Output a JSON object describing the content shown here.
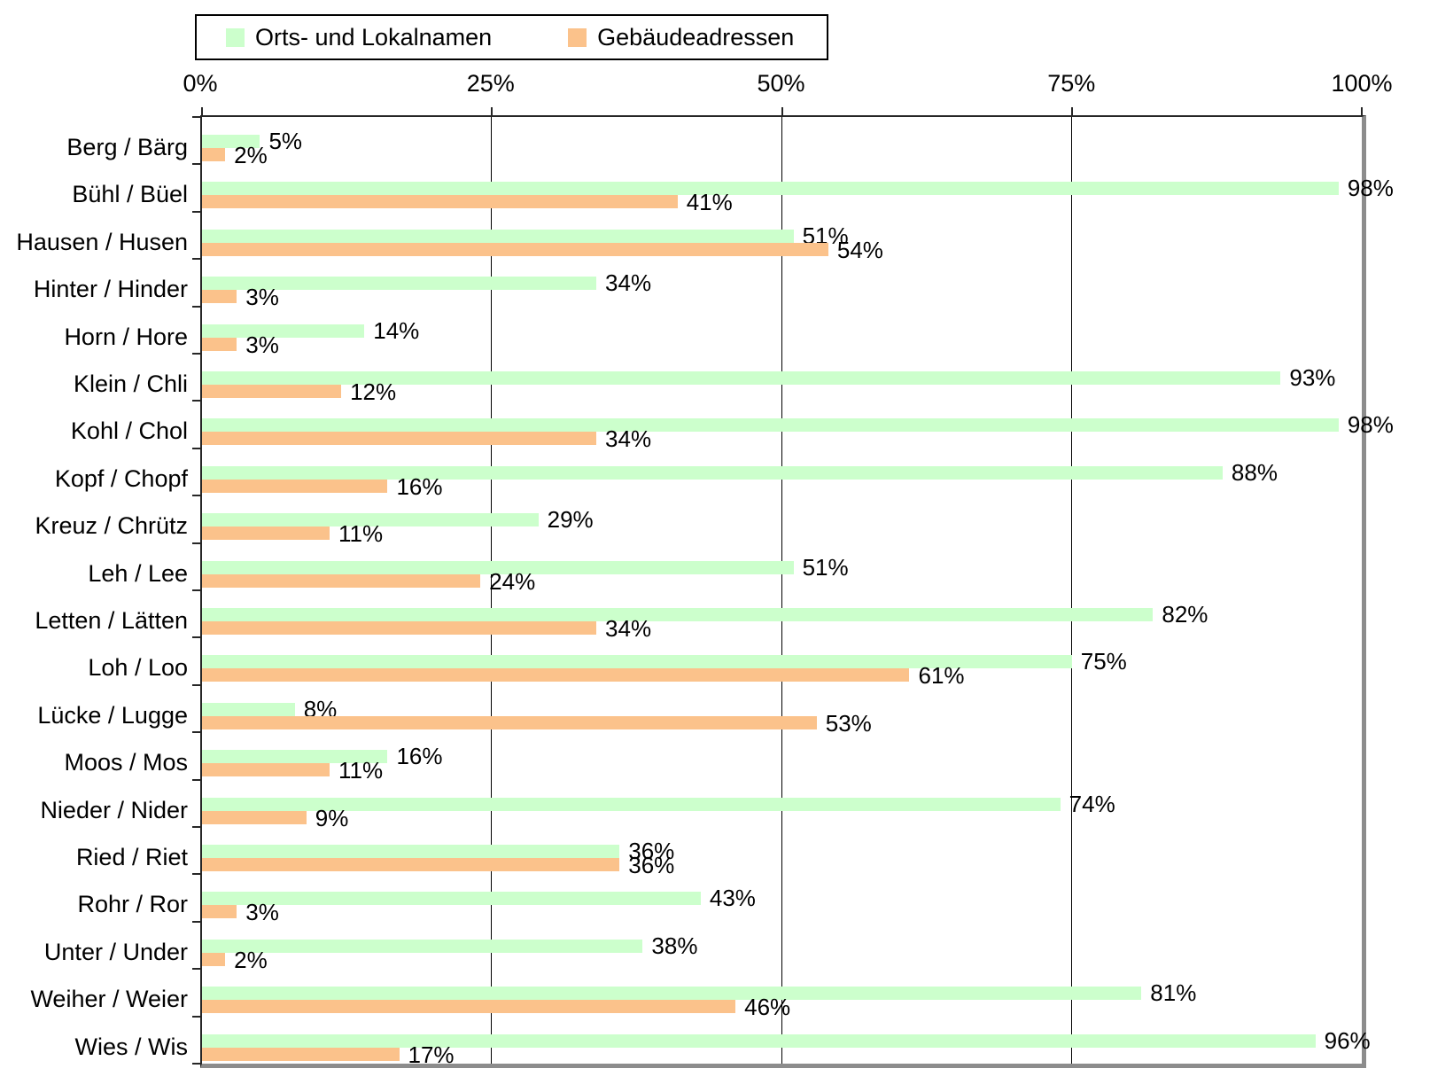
{
  "colors": {
    "bar_green": "#ccffcc",
    "bar_orange": "#fbc28b",
    "grid": "#000000",
    "axis": "#262626",
    "wall_shadow": "#8c8c8c",
    "background": "#ffffff"
  },
  "legend": {
    "items": [
      {
        "label": "Orts- und Lokalnamen",
        "color": "#ccffcc"
      },
      {
        "label": "Gebäudeadressen",
        "color": "#fbc28b"
      }
    ]
  },
  "chart_data": {
    "type": "bar",
    "orientation": "horizontal",
    "title": "",
    "xlabel": "",
    "ylabel": "",
    "xlim": [
      0,
      100
    ],
    "grid": true,
    "legend_position": "top-left",
    "value_label_suffix": "%",
    "x_axis": {
      "position": "top",
      "ticks": [
        "0%",
        "25%",
        "50%",
        "75%",
        "100%"
      ],
      "tick_values": [
        0,
        25,
        50,
        75,
        100
      ]
    },
    "categories": [
      "Berg / Bärg",
      "Bühl / Büel",
      "Hausen / Husen",
      "Hinter / Hinder",
      "Horn / Hore",
      "Klein / Chli",
      "Kohl / Chol",
      "Kopf / Chopf",
      "Kreuz / Chrütz",
      "Leh / Lee",
      "Letten / Lätten",
      "Loh / Loo",
      "Lücke / Lugge",
      "Moos / Mos",
      "Nieder / Nider",
      "Ried / Riet",
      "Rohr / Ror",
      "Unter / Under",
      "Weiher / Weier",
      "Wies / Wis"
    ],
    "series": [
      {
        "name": "Orts- und Lokalnamen",
        "color": "#ccffcc",
        "values": [
          5,
          98,
          51,
          34,
          14,
          93,
          98,
          88,
          29,
          51,
          82,
          75,
          8,
          16,
          74,
          36,
          43,
          38,
          81,
          96
        ]
      },
      {
        "name": "Gebäudeadressen",
        "color": "#fbc28b",
        "values": [
          2,
          41,
          54,
          3,
          3,
          12,
          34,
          16,
          11,
          24,
          34,
          61,
          53,
          11,
          9,
          36,
          3,
          2,
          46,
          17
        ]
      }
    ]
  }
}
